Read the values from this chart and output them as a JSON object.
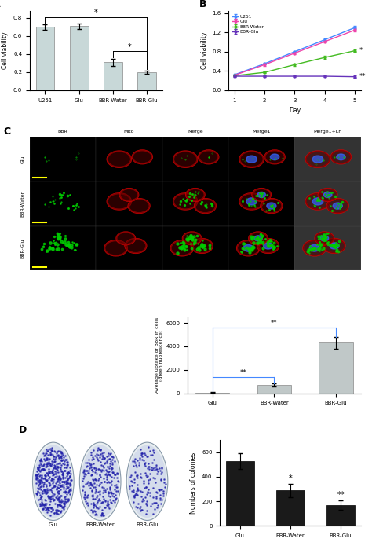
{
  "panel_A": {
    "categories": [
      "U251",
      "Glu",
      "BBR-Water",
      "BBR-Glu"
    ],
    "values": [
      0.7,
      0.71,
      0.31,
      0.2
    ],
    "errors": [
      0.03,
      0.03,
      0.04,
      0.02
    ],
    "ylabel": "Cell viability",
    "ylim": [
      0,
      0.88
    ],
    "yticks": [
      0.0,
      0.2,
      0.4,
      0.6,
      0.8
    ],
    "bar_color": "#c8d8d8"
  },
  "panel_B": {
    "days": [
      1,
      2,
      3,
      4,
      5
    ],
    "series_order": [
      "U251",
      "Glu",
      "BBR-Water",
      "BBR-Glu"
    ],
    "series": {
      "U251": {
        "values": [
          0.32,
          0.55,
          0.8,
          1.05,
          1.3
        ],
        "errors": [
          0.01,
          0.02,
          0.02,
          0.02,
          0.03
        ],
        "color": "#4488ff"
      },
      "Glu": {
        "values": [
          0.31,
          0.53,
          0.77,
          1.01,
          1.25
        ],
        "errors": [
          0.01,
          0.02,
          0.02,
          0.02,
          0.03
        ],
        "color": "#ee44aa"
      },
      "BBR-Water": {
        "values": [
          0.3,
          0.37,
          0.53,
          0.68,
          0.82
        ],
        "errors": [
          0.01,
          0.02,
          0.02,
          0.03,
          0.03
        ],
        "color": "#44bb22"
      },
      "BBR-Glu": {
        "values": [
          0.29,
          0.29,
          0.29,
          0.29,
          0.28
        ],
        "errors": [
          0.01,
          0.01,
          0.01,
          0.02,
          0.02
        ],
        "color": "#6633bb"
      }
    },
    "ylabel": "Cell viability",
    "ylim": [
      0.0,
      1.65
    ],
    "yticks": [
      0.0,
      0.4,
      0.8,
      1.2,
      1.6
    ],
    "xlabel": "Day"
  },
  "panel_C_bar": {
    "categories": [
      "Glu",
      "BBR-Water",
      "BBR-Glu"
    ],
    "values": [
      50,
      700,
      4300
    ],
    "errors": [
      30,
      120,
      500
    ],
    "ylabel": "Average uptake of BBR in cells\n(green fluorescence)",
    "ylim": [
      0,
      6500
    ],
    "yticks": [
      0,
      2000,
      4000,
      6000
    ],
    "bar_color": "#c0c8c8"
  },
  "panel_D_bar": {
    "categories": [
      "Glu",
      "BBR-Water",
      "BBR-Glu"
    ],
    "values": [
      530,
      290,
      170
    ],
    "errors": [
      65,
      55,
      40
    ],
    "ylabel": "Numbers of colonies",
    "ylim": [
      0,
      700
    ],
    "yticks": [
      0,
      200,
      400,
      600
    ],
    "bar_color": "#1a1a1a"
  },
  "panel_C_img": {
    "col_labels": [
      "BBR",
      "Mito",
      "Merge",
      "Merge1",
      "Merge1+LF"
    ],
    "row_labels": [
      "Glu",
      "BBR-Water",
      "BBR-Glu"
    ],
    "cell_colors": [
      [
        "#000000",
        "#000000",
        "#000000",
        "#000000",
        "#ccbbbb"
      ],
      [
        "#001a00",
        "#000000",
        "#001100",
        "#001133",
        "#ccbbaa"
      ],
      [
        "#002200",
        "#000000",
        "#111100",
        "#001133",
        "#ccbbaa"
      ]
    ]
  },
  "bg_color": "#ffffff"
}
